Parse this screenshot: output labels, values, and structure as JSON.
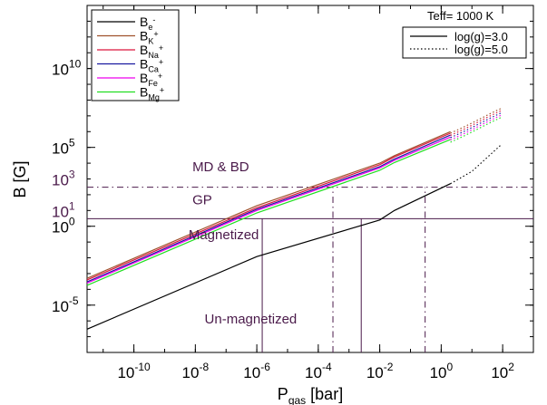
{
  "chart_data": {
    "type": "line",
    "xlabel_base": "P",
    "xlabel_sub": "gas",
    "xlabel_unit": " [bar]",
    "ylabel": "B [G]",
    "x_scale": "log",
    "y_scale": "log",
    "xlim": [
      3e-12,
      1000
    ],
    "ylim": [
      1e-08,
      100000000000000.0
    ],
    "x_ticks": [
      {
        "value": 1e-10,
        "base": "10",
        "exp": "-10"
      },
      {
        "value": 1e-08,
        "base": "10",
        "exp": "-8"
      },
      {
        "value": 1e-06,
        "base": "10",
        "exp": "-6"
      },
      {
        "value": 0.0001,
        "base": "10",
        "exp": "-4"
      },
      {
        "value": 0.01,
        "base": "10",
        "exp": "-2"
      },
      {
        "value": 1,
        "base": "10",
        "exp": "0"
      },
      {
        "value": 100,
        "base": "10",
        "exp": "2"
      }
    ],
    "y_ticks": [
      {
        "value": 1e-05,
        "base": "10",
        "exp": "-5"
      },
      {
        "value": 1,
        "base": "10",
        "exp": "0"
      },
      {
        "value": 100000,
        "base": "10",
        "exp": "5"
      },
      {
        "value": 10000000000,
        "base": "10",
        "exp": "10"
      }
    ],
    "y_marker_labels": [
      {
        "value": 1000,
        "base": "10",
        "exp": "3"
      },
      {
        "value": 10,
        "base": "10",
        "exp": "1"
      }
    ],
    "series": [
      {
        "name": "B",
        "sub": "e",
        "sup": "-",
        "color": "#000000",
        "x": [
          3e-12,
          1e-06,
          0.01,
          0.03,
          2
        ],
        "y": [
          3e-07,
          0.012,
          2.5,
          10,
          500
        ]
      },
      {
        "name": "B",
        "sub": "K",
        "sup": "+",
        "color": "#a0522d",
        "x": [
          3e-12,
          1e-06,
          0.01,
          0.03,
          2
        ],
        "y": [
          0.0005,
          20,
          10000,
          30000,
          1000000
        ]
      },
      {
        "name": "B",
        "sub": "Na",
        "sup": "+",
        "color": "#dc143c",
        "x": [
          3e-12,
          1e-06,
          0.01,
          0.03,
          2
        ],
        "y": [
          0.0004,
          15,
          8000,
          25000,
          800000
        ]
      },
      {
        "name": "B",
        "sub": "Ca",
        "sup": "+",
        "color": "#1a1aa0",
        "x": [
          3e-12,
          1e-06,
          0.01,
          0.03,
          2
        ],
        "y": [
          0.0003,
          12,
          6000,
          18000,
          600000
        ]
      },
      {
        "name": "B",
        "sub": "Fe",
        "sup": "+",
        "color": "#ee00ee",
        "x": [
          3e-12,
          1e-06,
          0.01,
          0.03,
          2
        ],
        "y": [
          0.00025,
          10,
          5000,
          15000,
          450000
        ]
      },
      {
        "name": "B",
        "sub": "Mg",
        "sup": "+",
        "color": "#22dd22",
        "x": [
          3e-12,
          1e-06,
          0.01,
          0.03,
          2
        ],
        "y": [
          0.00018,
          7,
          3500,
          11000,
          320000
        ]
      }
    ],
    "dotted_series": [
      {
        "group": "ions",
        "color": "#888888",
        "x": [
          2,
          5,
          10,
          20,
          40,
          90
        ],
        "y": [
          800000,
          1800000,
          3500000,
          7000000,
          14000000,
          30000000
        ]
      },
      {
        "group": "electrons",
        "color": "#000000",
        "x": [
          2,
          10,
          90
        ],
        "y": [
          500,
          3000,
          150000
        ]
      }
    ],
    "reference_lines": [
      {
        "kind": "horizontal",
        "value": 300,
        "style": "dash-dot"
      },
      {
        "kind": "horizontal",
        "value": 3,
        "style": "solid"
      },
      {
        "kind": "vertical",
        "value": 1.5e-06,
        "from": 1e-08,
        "to": 3,
        "style": "solid"
      },
      {
        "kind": "vertical",
        "value": 0.0003,
        "from": 1e-08,
        "to": 300,
        "style": "dash-dot"
      },
      {
        "kind": "vertical",
        "value": 0.0025,
        "from": 1e-08,
        "to": 3,
        "style": "solid"
      },
      {
        "kind": "vertical",
        "value": 0.3,
        "from": 1e-08,
        "to": 300,
        "style": "dash-dot"
      }
    ],
    "annotations": [
      {
        "text": "MD & BD",
        "x": 8e-09,
        "y": 3000
      },
      {
        "text": "GP",
        "x": 8e-09,
        "y": 25
      },
      {
        "text": "Magnetized",
        "x": 6e-09,
        "y": 0.15
      },
      {
        "text": "Un-magnetized",
        "x": 2e-08,
        "y": 7e-07
      }
    ],
    "legend": {
      "placement": "top-left",
      "entries": [
        {
          "name": "B",
          "sub": "e",
          "sup": "-",
          "color": "#000000"
        },
        {
          "name": "B",
          "sub": "K",
          "sup": "+",
          "color": "#a0522d"
        },
        {
          "name": "B",
          "sub": "Na",
          "sup": "+",
          "color": "#dc143c"
        },
        {
          "name": "B",
          "sub": "Ca",
          "sup": "+",
          "color": "#1a1aa0"
        },
        {
          "name": "B",
          "sub": "Fe",
          "sup": "+",
          "color": "#ee00ee"
        },
        {
          "name": "B",
          "sub": "Mg",
          "sup": "+",
          "color": "#22dd22"
        }
      ]
    },
    "style_legend": {
      "placement": "top-right",
      "title": "Teff= 1000 K",
      "entries": [
        {
          "label": "log(g)=3.0",
          "dash": "solid"
        },
        {
          "label": "log(g)=5.0",
          "dash": "dotted"
        }
      ]
    },
    "colors": {
      "reference": "#4a1a4a",
      "axis": "#000000"
    }
  }
}
